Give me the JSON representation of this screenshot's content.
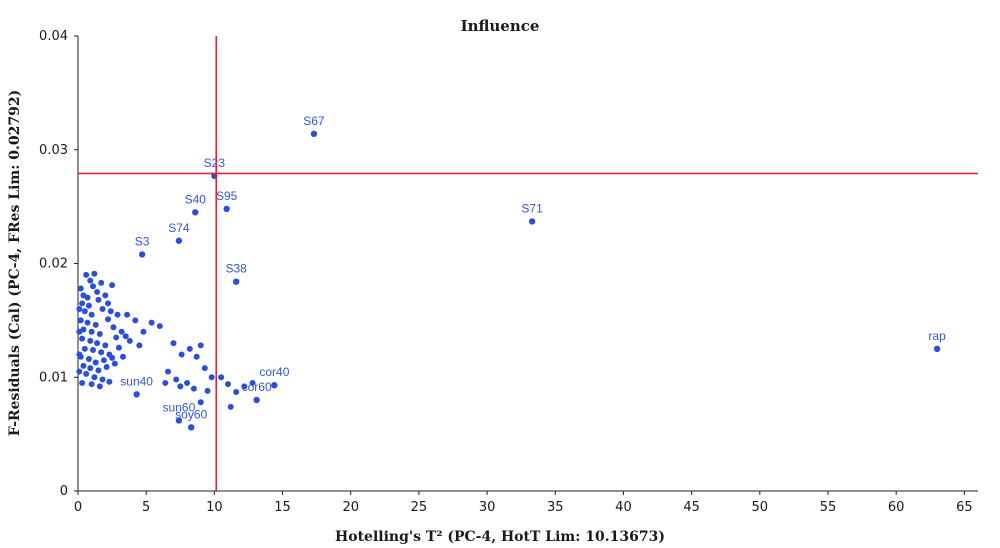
{
  "chart_data": {
    "type": "scatter",
    "title": "Influence",
    "xlabel": "Hotelling's T² (PC-4, HotT Lim: 10.13673)",
    "ylabel": "F-Residuals (Cal) (PC-4, FRes Lim: 0.02792)",
    "xlim": [
      0,
      66
    ],
    "ylim": [
      0,
      0.04
    ],
    "x_ticks": [
      "0",
      "5",
      "10",
      "15",
      "20",
      "25",
      "30",
      "35",
      "40",
      "45",
      "50",
      "55",
      "60",
      "65"
    ],
    "y_ticks": [
      "0",
      "0.01",
      "0.02",
      "0.03",
      "0.04"
    ],
    "thresholds": {
      "hotelling_t2_limit": 10.13673,
      "f_residual_limit": 0.02792
    },
    "colors": {
      "points": "#2b4fd8",
      "labels": "#3355dd",
      "limits": "#d42a3a"
    },
    "labeled_points": [
      {
        "label": "S67",
        "x": 17.3,
        "y": 0.0314
      },
      {
        "label": "S23",
        "x": 10.0,
        "y": 0.0277
      },
      {
        "label": "S40",
        "x": 8.6,
        "y": 0.0245
      },
      {
        "label": "S95",
        "x": 10.9,
        "y": 0.0248
      },
      {
        "label": "S71",
        "x": 33.3,
        "y": 0.0237
      },
      {
        "label": "S74",
        "x": 7.4,
        "y": 0.022
      },
      {
        "label": "S3",
        "x": 4.7,
        "y": 0.0208
      },
      {
        "label": "S38",
        "x": 11.6,
        "y": 0.0184
      },
      {
        "label": "rap",
        "x": 63.0,
        "y": 0.0125
      },
      {
        "label": "sun40",
        "x": 4.3,
        "y": 0.0085
      },
      {
        "label": "sun60",
        "x": 7.4,
        "y": 0.0062
      },
      {
        "label": "soy60",
        "x": 8.3,
        "y": 0.0056
      },
      {
        "label": "cor60",
        "x": 13.1,
        "y": 0.008
      },
      {
        "label": "cor40",
        "x": 14.4,
        "y": 0.0093
      }
    ],
    "points": [
      [
        0.2,
        0.0178
      ],
      [
        0.4,
        0.0172
      ],
      [
        0.6,
        0.019
      ],
      [
        0.9,
        0.0185
      ],
      [
        1.2,
        0.0191
      ],
      [
        0.3,
        0.0165
      ],
      [
        0.8,
        0.0163
      ],
      [
        1.5,
        0.0168
      ],
      [
        2.0,
        0.0172
      ],
      [
        0.5,
        0.0158
      ],
      [
        1.0,
        0.0155
      ],
      [
        1.8,
        0.016
      ],
      [
        2.4,
        0.0158
      ],
      [
        0.2,
        0.015
      ],
      [
        0.7,
        0.0148
      ],
      [
        1.3,
        0.0146
      ],
      [
        2.2,
        0.0151
      ],
      [
        2.9,
        0.0155
      ],
      [
        0.4,
        0.0142
      ],
      [
        1.0,
        0.014
      ],
      [
        1.6,
        0.0138
      ],
      [
        2.6,
        0.0144
      ],
      [
        3.2,
        0.014
      ],
      [
        0.3,
        0.0134
      ],
      [
        0.9,
        0.0132
      ],
      [
        1.4,
        0.013
      ],
      [
        2.0,
        0.0128
      ],
      [
        2.8,
        0.0135
      ],
      [
        3.5,
        0.0136
      ],
      [
        0.5,
        0.0125
      ],
      [
        1.1,
        0.0124
      ],
      [
        1.7,
        0.0122
      ],
      [
        2.3,
        0.012
      ],
      [
        3.0,
        0.0126
      ],
      [
        0.2,
        0.0118
      ],
      [
        0.8,
        0.0116
      ],
      [
        1.3,
        0.0113
      ],
      [
        1.9,
        0.0115
      ],
      [
        2.5,
        0.0117
      ],
      [
        0.4,
        0.011
      ],
      [
        0.9,
        0.0108
      ],
      [
        1.5,
        0.0106
      ],
      [
        2.1,
        0.0109
      ],
      [
        0.6,
        0.0103
      ],
      [
        1.2,
        0.01
      ],
      [
        1.8,
        0.0098
      ],
      [
        0.3,
        0.0095
      ],
      [
        1.0,
        0.0094
      ],
      [
        1.6,
        0.0092
      ],
      [
        2.3,
        0.0096
      ],
      [
        0.1,
        0.016
      ],
      [
        0.1,
        0.014
      ],
      [
        0.1,
        0.012
      ],
      [
        0.1,
        0.0105
      ],
      [
        0.7,
        0.017
      ],
      [
        1.4,
        0.0175
      ],
      [
        2.2,
        0.0165
      ],
      [
        3.6,
        0.0155
      ],
      [
        4.2,
        0.015
      ],
      [
        4.8,
        0.014
      ],
      [
        5.4,
        0.0148
      ],
      [
        6.0,
        0.0145
      ],
      [
        3.8,
        0.0132
      ],
      [
        4.5,
        0.0128
      ],
      [
        2.7,
        0.0112
      ],
      [
        3.3,
        0.0118
      ],
      [
        7.0,
        0.013
      ],
      [
        8.2,
        0.0125
      ],
      [
        7.6,
        0.012
      ],
      [
        8.7,
        0.0118
      ],
      [
        9.0,
        0.0128
      ],
      [
        6.6,
        0.0105
      ],
      [
        7.2,
        0.0098
      ],
      [
        8.0,
        0.0095
      ],
      [
        9.3,
        0.0108
      ],
      [
        9.8,
        0.01
      ],
      [
        6.4,
        0.0095
      ],
      [
        7.5,
        0.0092
      ],
      [
        8.5,
        0.009
      ],
      [
        9.5,
        0.0088
      ],
      [
        10.5,
        0.01
      ],
      [
        11.0,
        0.0094
      ],
      [
        11.6,
        0.0087
      ],
      [
        12.2,
        0.0092
      ],
      [
        12.8,
        0.0095
      ],
      [
        11.2,
        0.0074
      ],
      [
        9.0,
        0.0078
      ],
      [
        1.1,
        0.018
      ],
      [
        1.7,
        0.0183
      ],
      [
        2.5,
        0.0181
      ]
    ]
  }
}
